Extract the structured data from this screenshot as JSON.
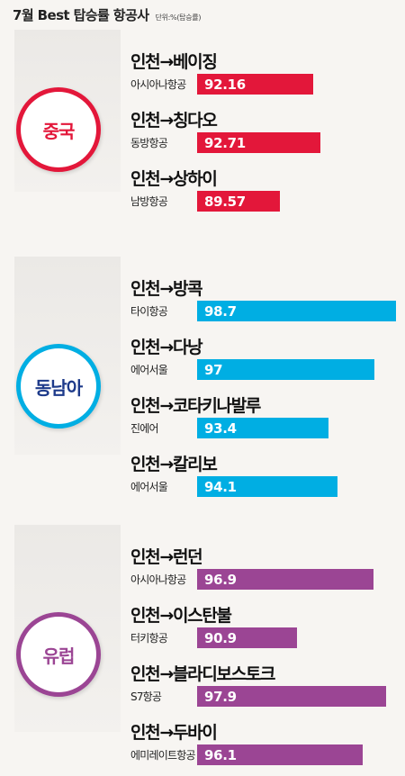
{
  "header": {
    "title": "7월 Best 탑승률 항공사",
    "unit": "단위:%(탑승률)"
  },
  "chart_data": {
    "type": "bar",
    "title": "7월 Best 탑승률 항공사",
    "unit": "단위:%(탑승률)",
    "groups": [
      {
        "name": "중국",
        "color": "#e3173a",
        "rows": [
          {
            "route": "인천→베이징",
            "airline": "아시아나항공",
            "value": 92.16,
            "label": "92.16"
          },
          {
            "route": "인천→칭다오",
            "airline": "동방항공",
            "value": 92.71,
            "label": "92.71"
          },
          {
            "route": "인천→상하이",
            "airline": "남방항공",
            "value": 89.57,
            "label": "89.57"
          }
        ]
      },
      {
        "name": "동남아",
        "color": "#00aee3",
        "rows": [
          {
            "route": "인천→방콕",
            "airline": "타이항공",
            "value": 98.7,
            "label": "98.7"
          },
          {
            "route": "인천→다낭",
            "airline": "에어서울",
            "value": 97,
            "label": "97"
          },
          {
            "route": "인천→코타키나발루",
            "airline": "진에어",
            "value": 93.4,
            "label": "93.4"
          },
          {
            "route": "인천→칼리보",
            "airline": "에어서울",
            "value": 94.1,
            "label": "94.1"
          }
        ]
      },
      {
        "name": "유럽",
        "color": "#9b4594",
        "rows": [
          {
            "route": "인천→런던",
            "airline": "아시아나항공",
            "value": 96.9,
            "label": "96.9"
          },
          {
            "route": "인천→이스탄불",
            "airline": "터키항공",
            "value": 90.9,
            "label": "90.9"
          },
          {
            "route": "인천→블라디보스토크",
            "airline": "S7항공",
            "value": 97.9,
            "label": "97.9"
          },
          {
            "route": "인천→두바이",
            "airline": "에미레이트항공",
            "value": 96.1,
            "label": "96.1"
          }
        ]
      }
    ]
  }
}
